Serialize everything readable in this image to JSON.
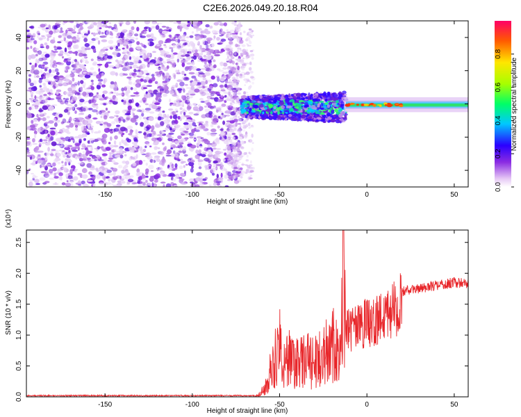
{
  "title": "C2E6.2026.049.20.18.R04",
  "spectrogram": {
    "xlabel": "Height of straight line (km)",
    "ylabel": "Frequency (Hz)",
    "xlim": [
      -195,
      58
    ],
    "ylim": [
      -50,
      50
    ],
    "x_ticks": [
      -150,
      -100,
      -50,
      0,
      50
    ],
    "y_ticks": [
      -40,
      -20,
      0,
      20,
      40
    ],
    "colorbar": {
      "label": "Normalized spectral amplitude",
      "ticks": [
        "0.0",
        "0.2",
        "0.4",
        "0.6",
        "0.8"
      ],
      "range": [
        0,
        1
      ]
    }
  },
  "chart_data": [
    {
      "type": "heatmap",
      "title": "C2E6.2026.049.20.18.R04",
      "xlabel": "Height of straight line (km)",
      "ylabel": "Frequency (Hz)",
      "xlim": [
        -195,
        58
      ],
      "ylim": [
        -50,
        50
      ],
      "colorbar_range": [
        0,
        1
      ],
      "description_regions": [
        {
          "x_range": [
            -195,
            -72
          ],
          "freq_range": [
            -50,
            50
          ],
          "amplitude": [
            0.0,
            0.15
          ]
        },
        {
          "x_range": [
            -72,
            -12
          ],
          "freq_range": [
            -10,
            8
          ],
          "amplitude": [
            0.1,
            0.45
          ]
        },
        {
          "x_range": [
            -12,
            58
          ],
          "freq_range": [
            -4,
            4
          ],
          "amplitude": [
            0.3,
            0.9
          ]
        }
      ]
    },
    {
      "type": "line",
      "xlabel": "Height of straight line (km)",
      "ylabel": "SNR (10 * v/v)",
      "ylabel_scale": "(x10⁴)",
      "xlim": [
        -195,
        58
      ],
      "ylim": [
        0,
        2.7
      ],
      "x_ticks": [
        -150,
        -100,
        -50,
        0,
        50
      ],
      "y_ticks": [
        "0.0",
        "0.5",
        "1.0",
        "1.5",
        "2.0",
        "2.5"
      ],
      "series": [
        {
          "color": "#e8262a",
          "x": [
            -195,
            -150,
            -100,
            -70,
            -62,
            -58,
            -55,
            -52,
            -50,
            -48,
            -45,
            -40,
            -35,
            -30,
            -25,
            -20,
            -15,
            -13,
            -12,
            -10,
            -5,
            0,
            5,
            10,
            15,
            20,
            30,
            40,
            50,
            58
          ],
          "y": [
            0.02,
            0.02,
            0.02,
            0.03,
            0.05,
            0.2,
            0.6,
            0.9,
            1.2,
            0.6,
            0.9,
            0.7,
            0.8,
            0.7,
            1.0,
            1.1,
            1.0,
            2.7,
            1.2,
            1.3,
            1.3,
            1.4,
            1.4,
            1.6,
            1.7,
            1.75,
            1.8,
            1.85,
            1.9,
            1.88
          ]
        }
      ]
    }
  ],
  "snr_panel": {
    "xlabel": "Height of straight line (km)",
    "ylabel": "SNR (10 * v/v)",
    "scale_label": "(x10⁴)"
  }
}
